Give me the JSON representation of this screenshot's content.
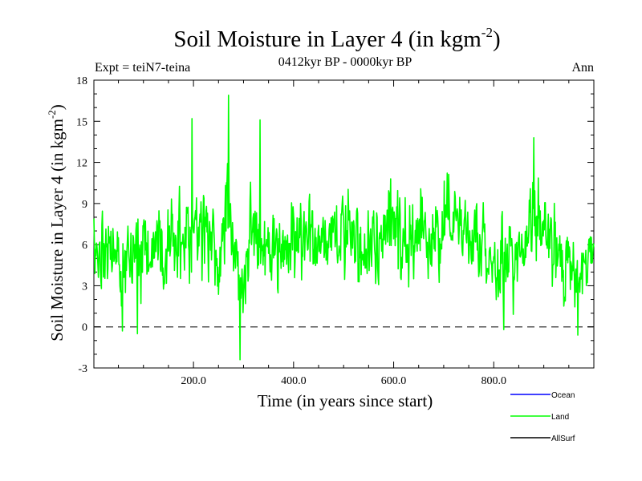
{
  "chart_data": {
    "type": "line",
    "title": "Soil Moisture in Layer 4 (in kgm",
    "title_superscript": "-2",
    "title_close": ")",
    "subtitle": "0412kyr BP - 0000kyr BP",
    "expt_label": "Expt = teiN7-teina",
    "season_label": "Ann",
    "xlabel": "Time (in years since start)",
    "ylabel": "Soil Moisture in Layer 4 (in kgm",
    "ylabel_superscript": "-2",
    "ylabel_close": ")",
    "xlim": [
      1,
      1000
    ],
    "ylim": [
      -3,
      18
    ],
    "x_ticks": [
      200,
      400,
      600,
      800
    ],
    "x_tick_labels": [
      "200.0",
      "400.0",
      "600.0",
      "800.0"
    ],
    "y_ticks": [
      -3,
      0,
      3,
      6,
      9,
      12,
      15,
      18
    ],
    "y_tick_labels": [
      "-3",
      "0",
      "3",
      "6",
      "9",
      "12",
      "15",
      "18"
    ],
    "zero_line": 0,
    "legend": [
      {
        "name": "Ocean",
        "color": "#0000ff"
      },
      {
        "name": "Land",
        "color": "#00ff00"
      },
      {
        "name": "AllSurf",
        "color": "#000000"
      }
    ],
    "series": [
      {
        "name": "Land",
        "color": "#00ff00",
        "n_points": 1000,
        "anchors_x": [
          1,
          10,
          20,
          30,
          45,
          55,
          70,
          85,
          100,
          115,
          130,
          145,
          160,
          175,
          190,
          200,
          215,
          230,
          245,
          255,
          265,
          270,
          280,
          290,
          295,
          305,
          315,
          325,
          335,
          345,
          360,
          375,
          390,
          405,
          420,
          435,
          450,
          465,
          480,
          495,
          510,
          525,
          540,
          555,
          570,
          585,
          600,
          615,
          630,
          645,
          660,
          675,
          690,
          705,
          720,
          735,
          750,
          765,
          780,
          795,
          810,
          820,
          835,
          850,
          865,
          880,
          895,
          910,
          925,
          940,
          955,
          965,
          975,
          985,
          1000
        ],
        "anchors_mean": [
          5,
          6,
          6.5,
          5.8,
          5.5,
          5,
          4.5,
          5.5,
          6,
          5.5,
          5.2,
          6,
          6.5,
          6,
          7,
          7.5,
          6.8,
          6.5,
          6,
          7,
          8,
          8.5,
          6,
          3,
          2.5,
          5.5,
          7,
          7.5,
          6,
          5.5,
          6,
          5.5,
          6,
          7,
          7,
          6.5,
          6,
          6.5,
          7,
          6.5,
          6.5,
          6,
          5.5,
          6.5,
          6.5,
          7,
          7.5,
          6.5,
          6,
          6.5,
          7,
          6.5,
          6.5,
          7,
          7.2,
          6.8,
          6.5,
          6.5,
          6,
          5.5,
          4.5,
          4.5,
          5.5,
          6,
          6.5,
          7.5,
          7,
          6,
          5.5,
          5,
          4.5,
          3.5,
          4,
          5.5,
          6
        ],
        "min": -2.4,
        "max": 16.9,
        "peak_events": [
          {
            "x": 270,
            "value": 16.9
          },
          {
            "x": 293,
            "value": -2.4
          },
          {
            "x": 197,
            "value": 15.2
          },
          {
            "x": 333,
            "value": 15.1
          },
          {
            "x": 880,
            "value": 13.8
          },
          {
            "x": 968,
            "value": -0.6
          },
          {
            "x": 58,
            "value": -0.3
          },
          {
            "x": 88,
            "value": -0.5
          },
          {
            "x": 820,
            "value": -0.2
          }
        ],
        "sigma": 1.9,
        "seed": 412
      }
    ]
  }
}
